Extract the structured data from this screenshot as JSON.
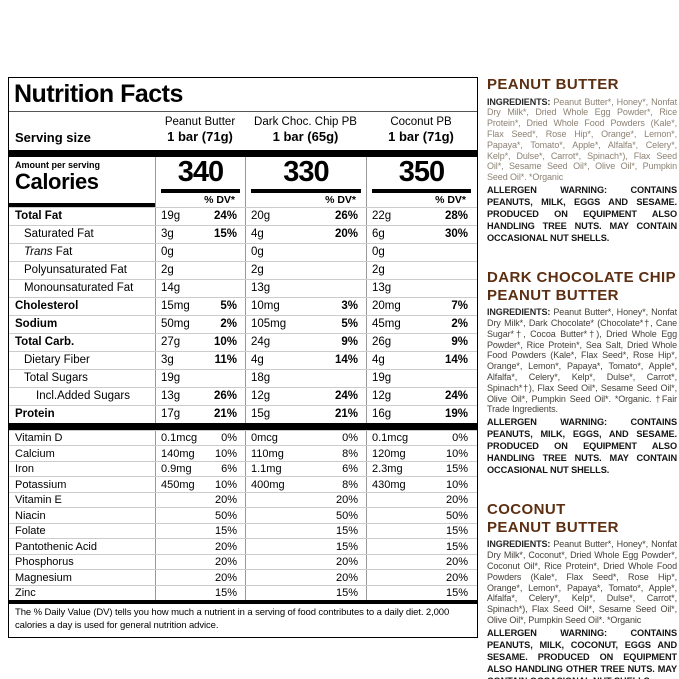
{
  "panel": {
    "title": "Nutrition Facts",
    "serving_size_label": "Serving size",
    "amount_per_serving": "Amount per serving",
    "calories_label": "Calories",
    "dv_header": "% DV*",
    "columns": [
      {
        "name": "Peanut Butter",
        "serving": "1 bar (71g)",
        "calories": "340"
      },
      {
        "name": "Dark Choc. Chip PB",
        "serving": "1 bar (65g)",
        "calories": "330"
      },
      {
        "name": "Coconut PB",
        "serving": "1 bar (71g)",
        "calories": "350"
      }
    ],
    "nutrient_rows": [
      {
        "label": "Total Fat",
        "bold": true,
        "level": 0,
        "values": [
          {
            "amt": "19g",
            "dv": "24%"
          },
          {
            "amt": "20g",
            "dv": "26%"
          },
          {
            "amt": "22g",
            "dv": "28%"
          }
        ]
      },
      {
        "label": "Saturated Fat",
        "bold": false,
        "level": 1,
        "values": [
          {
            "amt": "3g",
            "dv": "15%"
          },
          {
            "amt": "4g",
            "dv": "20%"
          },
          {
            "amt": "6g",
            "dv": "30%"
          }
        ]
      },
      {
        "label": " Fat",
        "italic_prefix": "Trans",
        "bold": false,
        "level": 1,
        "values": [
          {
            "amt": "0g",
            "dv": ""
          },
          {
            "amt": "0g",
            "dv": ""
          },
          {
            "amt": "0g",
            "dv": ""
          }
        ]
      },
      {
        "label": "Polyunsaturated Fat",
        "bold": false,
        "level": 1,
        "values": [
          {
            "amt": "2g",
            "dv": ""
          },
          {
            "amt": "2g",
            "dv": ""
          },
          {
            "amt": "2g",
            "dv": ""
          }
        ]
      },
      {
        "label": "Monounsaturated Fat",
        "bold": false,
        "level": 1,
        "values": [
          {
            "amt": "14g",
            "dv": ""
          },
          {
            "amt": "13g",
            "dv": ""
          },
          {
            "amt": "13g",
            "dv": ""
          }
        ]
      },
      {
        "label": "Cholesterol",
        "bold": true,
        "level": 0,
        "values": [
          {
            "amt": "15mg",
            "dv": "5%"
          },
          {
            "amt": "10mg",
            "dv": "3%"
          },
          {
            "amt": "20mg",
            "dv": "7%"
          }
        ]
      },
      {
        "label": "Sodium",
        "bold": true,
        "level": 0,
        "values": [
          {
            "amt": "50mg",
            "dv": "2%"
          },
          {
            "amt": "105mg",
            "dv": "5%"
          },
          {
            "amt": "45mg",
            "dv": "2%"
          }
        ]
      },
      {
        "label": "Total Carb.",
        "bold": true,
        "level": 0,
        "values": [
          {
            "amt": "27g",
            "dv": "10%"
          },
          {
            "amt": "24g",
            "dv": "9%"
          },
          {
            "amt": "26g",
            "dv": "9%"
          }
        ]
      },
      {
        "label": "Dietary Fiber",
        "bold": false,
        "level": 1,
        "values": [
          {
            "amt": "3g",
            "dv": "11%"
          },
          {
            "amt": "4g",
            "dv": "14%"
          },
          {
            "amt": "4g",
            "dv": "14%"
          }
        ]
      },
      {
        "label": "Total Sugars",
        "bold": false,
        "level": 1,
        "values": [
          {
            "amt": "19g",
            "dv": ""
          },
          {
            "amt": "18g",
            "dv": ""
          },
          {
            "amt": "19g",
            "dv": ""
          }
        ]
      },
      {
        "label": "Incl.Added Sugars",
        "bold": false,
        "level": 2,
        "values": [
          {
            "amt": "13g",
            "dv": "26%"
          },
          {
            "amt": "12g",
            "dv": "24%"
          },
          {
            "amt": "12g",
            "dv": "24%"
          }
        ]
      },
      {
        "label": "Protein",
        "bold": true,
        "level": 0,
        "values": [
          {
            "amt": "17g",
            "dv": "21%"
          },
          {
            "amt": "15g",
            "dv": "21%"
          },
          {
            "amt": "16g",
            "dv": "19%"
          }
        ]
      }
    ],
    "vitamin_rows": [
      {
        "label": "Vitamin D",
        "values": [
          {
            "amt": "0.1mcg",
            "dv": "0%"
          },
          {
            "amt": "0mcg",
            "dv": "0%"
          },
          {
            "amt": "0.1mcg",
            "dv": "0%"
          }
        ]
      },
      {
        "label": "Calcium",
        "values": [
          {
            "amt": "140mg",
            "dv": "10%"
          },
          {
            "amt": "110mg",
            "dv": "8%"
          },
          {
            "amt": "120mg",
            "dv": "10%"
          }
        ]
      },
      {
        "label": "Iron",
        "values": [
          {
            "amt": "0.9mg",
            "dv": "6%"
          },
          {
            "amt": "1.1mg",
            "dv": "6%"
          },
          {
            "amt": "2.3mg",
            "dv": "15%"
          }
        ]
      },
      {
        "label": "Potassium",
        "values": [
          {
            "amt": "450mg",
            "dv": "10%"
          },
          {
            "amt": "400mg",
            "dv": "8%"
          },
          {
            "amt": "430mg",
            "dv": "10%"
          }
        ]
      },
      {
        "label": "Vitamin E",
        "values": [
          {
            "amt": "",
            "dv": "20%"
          },
          {
            "amt": "",
            "dv": "20%"
          },
          {
            "amt": "",
            "dv": "20%"
          }
        ]
      },
      {
        "label": "Niacin",
        "values": [
          {
            "amt": "",
            "dv": "50%"
          },
          {
            "amt": "",
            "dv": "50%"
          },
          {
            "amt": "",
            "dv": "50%"
          }
        ]
      },
      {
        "label": "Folate",
        "values": [
          {
            "amt": "",
            "dv": "15%"
          },
          {
            "amt": "",
            "dv": "15%"
          },
          {
            "amt": "",
            "dv": "15%"
          }
        ]
      },
      {
        "label": "Pantothenic Acid",
        "values": [
          {
            "amt": "",
            "dv": "20%"
          },
          {
            "amt": "",
            "dv": "15%"
          },
          {
            "amt": "",
            "dv": "15%"
          }
        ]
      },
      {
        "label": "Phosphorus",
        "values": [
          {
            "amt": "",
            "dv": "20%"
          },
          {
            "amt": "",
            "dv": "20%"
          },
          {
            "amt": "",
            "dv": "20%"
          }
        ]
      },
      {
        "label": "Magnesium",
        "values": [
          {
            "amt": "",
            "dv": "20%"
          },
          {
            "amt": "",
            "dv": "20%"
          },
          {
            "amt": "",
            "dv": "20%"
          }
        ]
      },
      {
        "label": "Zinc",
        "values": [
          {
            "amt": "",
            "dv": "15%"
          },
          {
            "amt": "",
            "dv": "15%"
          },
          {
            "amt": "",
            "dv": "15%"
          }
        ]
      }
    ],
    "footnote": "The % Daily Value (DV) tells you how much a nutrient in a serving of food contributes to a daily diet. 2,000 calories a day is used for general nutrition advice."
  },
  "ingredients_blocks": [
    {
      "heading": "PEANUT BUTTER",
      "ingredients_label": "INGREDIENTS:",
      "ingredients_text": " Peanut Butter*, Honey*, Nonfat Dry Milk*, Dried Whole Egg Powder*, Rice Protein*, Dried Whole Food Powders (Kale*, Flax Seed*, Rose Hip*, Orange*, Lemon*, Papaya*, Tomato*, Apple*, Alfalfa*, Celery*, Kelp*, Dulse*, Carrot*, Spinach*), Flax Seed Oil*, Sesame Seed Oil*, Olive Oil*, Pumpkin Seed Oil*. *Organic",
      "allergen_text": "ALLERGEN WARNING: CONTAINS PEANUTS, MILK, EGGS AND SESAME. PRODUCED ON EQUIPMENT ALSO HANDLING TREE NUTS. MAY CONTAIN OCCASIONAL NUT SHELLS."
    },
    {
      "heading": "DARK CHOCOLATE CHIP\nPEANUT BUTTER",
      "ingredients_label": "INGREDIENTS:",
      "ingredients_text": " Peanut Butter*, Honey*, Nonfat Dry Milk*, Dark Chocolate* (Chocolate*†, Cane Sugar*†, Cocoa Butter*†), Dried Whole Egg Powder*, Rice Protein*, Sea Salt, Dried Whole Food Powders (Kale*, Flax Seed*, Rose Hip*, Orange*, Lemon*, Papaya*, Tomato*, Apple*, Alfalfa*, Celery*, Kelp*, Dulse*, Carrot*, Spinach*†), Flax Seed Oil*, Sesame Seed Oil*, Olive Oil*, Pumpkin Seed Oil*. *Organic. †Fair Trade Ingredients.",
      "allergen_text": "ALLERGEN WARNING: CONTAINS PEANUTS, MILK, EGGS, AND SESAME. PRODUCED ON EQUIPMENT ALSO HANDLING TREE NUTS. MAY CONTAIN OCCASIONAL NUT SHELLS."
    },
    {
      "heading": "COCONUT\nPEANUT BUTTER",
      "ingredients_label": "INGREDIENTS:",
      "ingredients_text": " Peanut Butter*, Honey*, Nonfat Dry Milk*, Coconut*, Dried Whole Egg Powder*, Coconut Oil*, Rice Protein*, Dried Whole Food Powders (Kale*, Flax Seed*, Rose Hip*, Orange*, Lemon*, Papaya*, Tomato*, Apple*, Alfalfa*, Celery*, Kelp*, Dulse*, Carrot*, Spinach*), Flax Seed Oil*, Sesame Seed Oil*, Olive Oil*, Pumpkin Seed Oil*. *Organic",
      "allergen_text": "ALLERGEN WARNING: CONTAINS PEANUTS, MILK, COCONUT, EGGS AND SESAME. PRODUCED ON EQUIPMENT ALSO HANDLING OTHER TREE NUTS. MAY CONTAIN OCCASIONAL NUT SHELLS."
    }
  ],
  "colors": {
    "heading_brown": "#5d2f12",
    "ink_black": "#000000",
    "hairline_gray": "#cccccc"
  }
}
